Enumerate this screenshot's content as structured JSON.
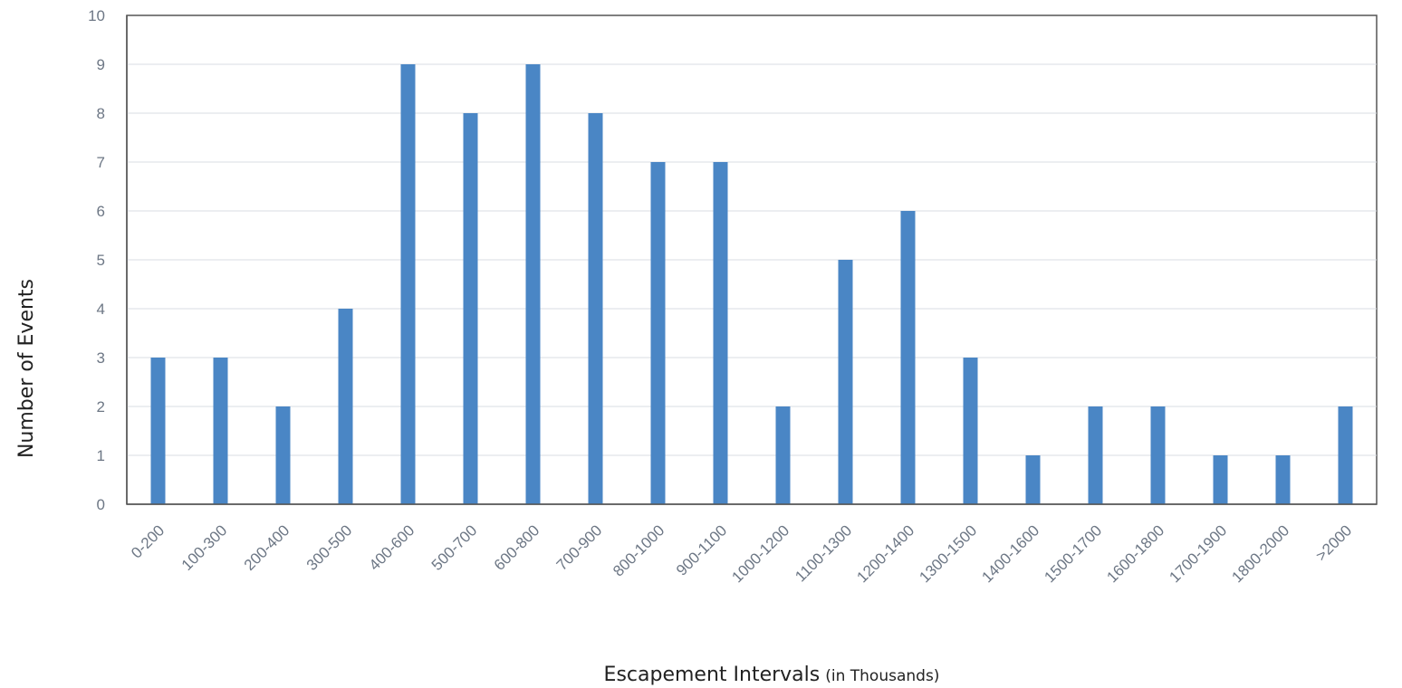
{
  "chart_data": {
    "type": "bar",
    "categories": [
      "0-200",
      "100-300",
      "200-400",
      "300-500",
      "400-600",
      "500-700",
      "600-800",
      "700-900",
      "800-1000",
      "900-1100",
      "1000-1200",
      "1100-1300",
      "1200-1400",
      "1300-1500",
      "1400-1600",
      "1500-1700",
      "1600-1800",
      "1700-1900",
      "1800-2000",
      ">2000"
    ],
    "values": [
      3,
      3,
      2,
      4,
      9,
      8,
      9,
      8,
      7,
      7,
      2,
      5,
      6,
      3,
      1,
      2,
      2,
      1,
      1,
      2
    ],
    "yticks": [
      "0",
      "1",
      "2",
      "3",
      "4",
      "5",
      "6",
      "7",
      "8",
      "9",
      "10"
    ],
    "ylim": [
      0,
      10
    ],
    "ylabel": "Number of Events",
    "xlabel": "Escapement Intervals",
    "xlabel_suffix": "(in Thousands)",
    "grid": true,
    "legend": "none",
    "bar_color": "#4a86c5",
    "grid_color": "#d9dde3",
    "axis_color": "#555555"
  }
}
